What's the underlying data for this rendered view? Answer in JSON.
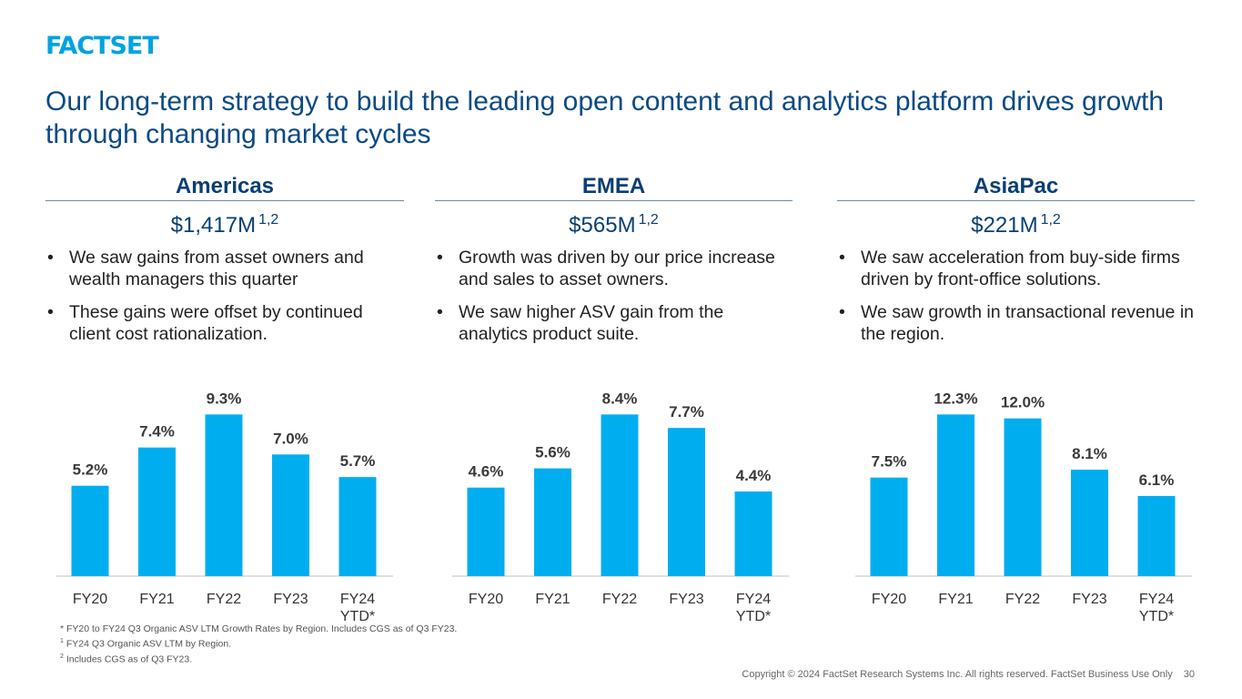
{
  "logo": "FACTSET",
  "title": "Our long-term strategy to build the leading open content and analytics platform drives growth through changing market cycles",
  "regions": [
    {
      "name": "Americas",
      "asv": "$1,417M",
      "asv_sup": "1,2",
      "bullets": [
        "We saw gains from asset owners and wealth managers this quarter",
        "These gains were offset by continued client cost rationalization."
      ]
    },
    {
      "name": "EMEA",
      "asv": "$565M",
      "asv_sup": "1,2",
      "bullets": [
        "Growth was driven by our price increase and sales to asset owners.",
        "We saw higher ASV gain from the analytics product suite."
      ]
    },
    {
      "name": "AsiaPac",
      "asv": "$221M",
      "asv_sup": "1,2",
      "bullets": [
        "We saw acceleration from buy-side firms driven by front-office solutions.",
        "We saw growth in transactional revenue in the region."
      ]
    }
  ],
  "chart_data": [
    {
      "type": "bar",
      "categories": [
        "FY20",
        "FY21",
        "FY22",
        "FY23",
        "FY24 YTD*"
      ],
      "values": [
        5.2,
        7.4,
        9.3,
        7.0,
        5.7
      ],
      "value_labels": [
        "5.2%",
        "7.4%",
        "9.3%",
        "7.0%",
        "5.7%"
      ],
      "title": "",
      "xlabel": "",
      "ylabel": "",
      "color": "#00aeef"
    },
    {
      "type": "bar",
      "categories": [
        "FY20",
        "FY21",
        "FY22",
        "FY23",
        "FY24 YTD*"
      ],
      "values": [
        4.6,
        5.6,
        8.4,
        7.7,
        4.4
      ],
      "value_labels": [
        "4.6%",
        "5.6%",
        "8.4%",
        "7.7%",
        "4.4%"
      ],
      "title": "",
      "xlabel": "",
      "ylabel": "",
      "color": "#00aeef"
    },
    {
      "type": "bar",
      "categories": [
        "FY20",
        "FY21",
        "FY22",
        "FY23",
        "FY24 YTD*"
      ],
      "values": [
        7.5,
        12.3,
        12.0,
        8.1,
        6.1
      ],
      "value_labels": [
        "7.5%",
        "12.3%",
        "12.0%",
        "8.1%",
        "6.1%"
      ],
      "title": "",
      "xlabel": "",
      "ylabel": "",
      "color": "#00aeef"
    }
  ],
  "footnotes": {
    "line1": "* FY20 to FY24 Q3 Organic ASV LTM Growth Rates by Region.  Includes CGS as of Q3 FY23.",
    "line2_sup": "1",
    "line2": " FY24 Q3 Organic ASV LTM by Region.",
    "line3_sup": "2",
    "line3": " Includes CGS as of Q3 FY23."
  },
  "copyright": "Copyright © 2024 FactSet Research Systems Inc. All rights reserved. FactSet Business Use Only",
  "page_number": "30"
}
